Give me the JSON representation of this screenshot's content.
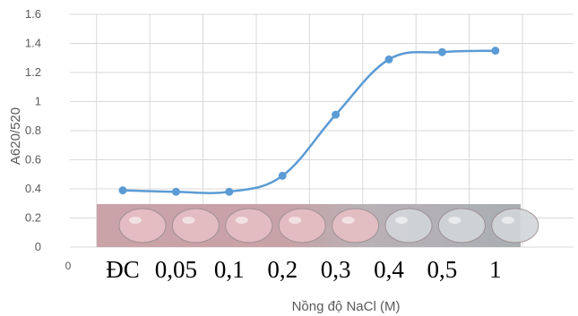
{
  "chart_data": {
    "type": "line",
    "title": "",
    "xlabel": "Nồng độ NaCl (M)",
    "ylabel": "A620/520",
    "origin_label": "0",
    "categories": [
      "ĐC",
      "0,05",
      "0,1",
      "0,2",
      "0,3",
      "0,4",
      "0,5",
      "1"
    ],
    "values": [
      0.39,
      0.38,
      0.38,
      0.49,
      0.91,
      1.29,
      1.34,
      1.35
    ],
    "ylim": [
      0,
      1.6
    ],
    "yticks": [
      "0",
      "0.2",
      "0.4",
      "0.6",
      "0.8",
      "1",
      "1.2",
      "1.4",
      "1.6"
    ],
    "grid": true,
    "colors": {
      "line": "#5b9bd5",
      "grid": "#d9d9d9"
    },
    "inset": "photo of sample wells from pink (ĐC) to colorless (1)"
  }
}
